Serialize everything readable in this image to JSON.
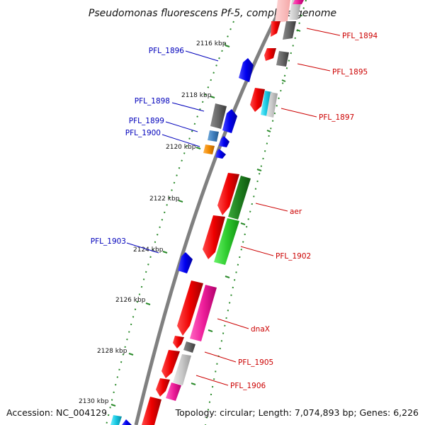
{
  "title": "Pseudomonas fluorescens Pf-5, complete genome",
  "footer": {
    "accession": "Accession: NC_004129",
    "summary": "Topology: circular; Length: 7,074,893 bp; Genes: 6,226"
  },
  "colors": {
    "forward_label": "#cc0000",
    "reverse_label": "#0000bb",
    "backbone": "#808080",
    "tick": "#2a8a2a"
  },
  "ticks": [
    "2116 kbp",
    "2118 kbp",
    "2120 kbp",
    "2122 kbp",
    "2124 kbp",
    "2126 kbp",
    "2128 kbp",
    "2130 kbp"
  ],
  "labels": [
    {
      "id": "pfl-1894",
      "text": "PFL_1894",
      "strand": "forward"
    },
    {
      "id": "pfl-1895",
      "text": "PFL_1895",
      "strand": "forward"
    },
    {
      "id": "pfl-1897",
      "text": "PFL_1897",
      "strand": "forward"
    },
    {
      "id": "aer",
      "text": "aer",
      "strand": "forward"
    },
    {
      "id": "pfl-1902",
      "text": "PFL_1902",
      "strand": "forward"
    },
    {
      "id": "dnax",
      "text": "dnaX",
      "strand": "forward"
    },
    {
      "id": "pfl-1905",
      "text": "PFL_1905",
      "strand": "forward"
    },
    {
      "id": "pfl-1906",
      "text": "PFL_1906",
      "strand": "forward"
    },
    {
      "id": "pfl-1896",
      "text": "PFL_1896",
      "strand": "reverse"
    },
    {
      "id": "pfl-1898",
      "text": "PFL_1898",
      "strand": "reverse"
    },
    {
      "id": "pfl-1899",
      "text": "PFL_1899",
      "strand": "reverse"
    },
    {
      "id": "pfl-1900",
      "text": "PFL_1900",
      "strand": "reverse"
    },
    {
      "id": "pfl-1903",
      "text": "PFL_1903",
      "strand": "reverse"
    }
  ]
}
